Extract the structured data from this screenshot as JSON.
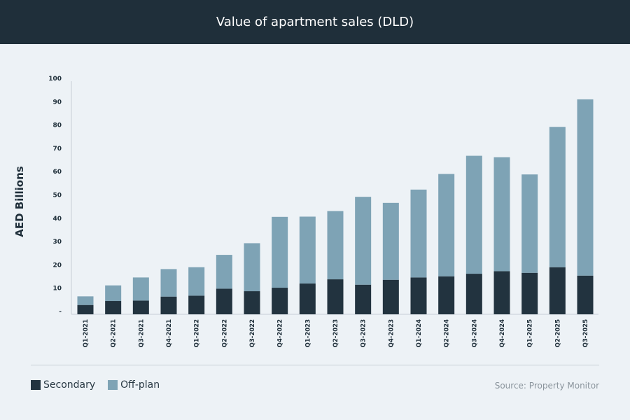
{
  "header": {
    "title": "Value of apartment sales (DLD)"
  },
  "legend": {
    "items": [
      {
        "label": "Secondary",
        "color": "#22333f"
      },
      {
        "label": "Off-plan",
        "color": "#7ea3b5"
      }
    ]
  },
  "source": "Source: Property Monitor",
  "chart_data": {
    "type": "bar",
    "stacked": true,
    "title": "Value of apartment sales (DLD)",
    "ylabel": "AED Billions",
    "xlabel": "",
    "ylim": [
      0,
      100
    ],
    "yticks": [
      "-",
      "10",
      "20",
      "30",
      "40",
      "50",
      "60",
      "70",
      "80",
      "90",
      "100"
    ],
    "grid": false,
    "legend_position": "bottom-left",
    "categories": [
      "Q1-2021",
      "Q2-2021",
      "Q3-2021",
      "Q4-2021",
      "Q1-2022",
      "Q2-2022",
      "Q3-2022",
      "Q4-2022",
      "Q1-2023",
      "Q2-2023",
      "Q3-2023",
      "Q4-2023",
      "Q1-2024",
      "Q2-2024",
      "Q3-2024",
      "Q4-2024",
      "Q1-2025",
      "Q2-2025",
      "Q3-2025"
    ],
    "series": [
      {
        "name": "Secondary",
        "color": "#22333f",
        "values": [
          4.0,
          5.7,
          5.9,
          7.6,
          8.0,
          11.0,
          9.9,
          11.4,
          13.2,
          15.0,
          12.7,
          14.8,
          15.8,
          16.3,
          17.4,
          18.5,
          17.8,
          20.2,
          16.6
        ]
      },
      {
        "name": "Off-plan",
        "color": "#7ea3b5",
        "values": [
          3.7,
          6.7,
          9.9,
          11.8,
          12.2,
          14.5,
          20.6,
          30.4,
          28.7,
          29.3,
          37.7,
          33.0,
          37.7,
          43.9,
          50.6,
          48.9,
          42.2,
          60.2,
          75.6
        ]
      }
    ]
  }
}
